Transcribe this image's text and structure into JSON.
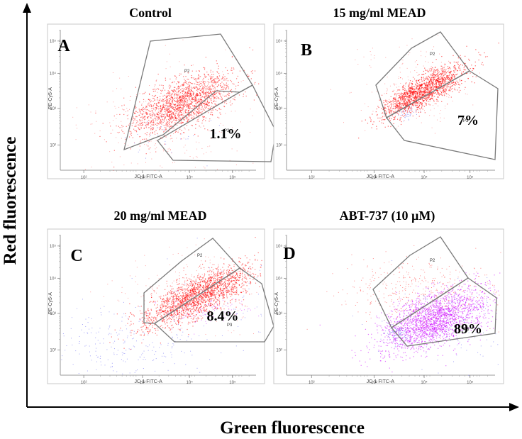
{
  "figure": {
    "y_axis_label": "Red fluorescence",
    "x_axis_label": "Green fluorescence"
  },
  "colors": {
    "healthy_events": "#ff0000",
    "depolarized_events_abt": "#cc00ff",
    "outlier_events": "#7f7ff5",
    "gate_outline": "#7a7a7a",
    "frame": "#c8c8c8"
  },
  "chart_data": [
    {
      "type": "scatter",
      "panel_letter": "A",
      "title": "Control",
      "xlabel": "JC-1 FITC-A",
      "ylabel": "PE-Cy5-A",
      "scale": "log",
      "xticks": [
        "10²",
        "10³",
        "10⁴",
        "10⁵"
      ],
      "yticks": [
        "10²",
        "10³",
        "10⁴",
        "10⁵"
      ],
      "gates": [
        "P2",
        "P3"
      ],
      "depolarized_percent_label": "1.1%"
    },
    {
      "type": "scatter",
      "panel_letter": "B",
      "title": "15 mg/ml MEAD",
      "xlabel": "JC-1 FITC-A",
      "ylabel": "PE-Cy5-A",
      "scale": "log",
      "xticks": [
        "10²",
        "10³",
        "10⁴",
        "10⁵"
      ],
      "yticks": [
        "10²",
        "10³",
        "10⁴",
        "10⁵"
      ],
      "gates": [
        "P2",
        "P3"
      ],
      "depolarized_percent_label": "7%"
    },
    {
      "type": "scatter",
      "panel_letter": "C",
      "title": "20 mg/ml MEAD",
      "xlabel": "JC-1 FITC-A",
      "ylabel": "PE-Cy5-A",
      "scale": "log",
      "xticks": [
        "10²",
        "10³",
        "10⁴",
        "10⁵"
      ],
      "yticks": [
        "10²",
        "10³",
        "10⁴",
        "10⁵"
      ],
      "gates": [
        "P2",
        "P3"
      ],
      "depolarized_percent_label": "8.4%"
    },
    {
      "type": "scatter",
      "panel_letter": "D",
      "title": "ABT-737 (10 µM)",
      "xlabel": "JC-1 FITC-A",
      "ylabel": "PE-Cy5-A",
      "scale": "log",
      "xticks": [
        "10²",
        "10³",
        "10⁴",
        "10⁵"
      ],
      "yticks": [
        "10²",
        "10³",
        "10⁴",
        "10⁵"
      ],
      "gates": [
        "P2",
        "P3"
      ],
      "depolarized_percent_label": "89%"
    }
  ]
}
